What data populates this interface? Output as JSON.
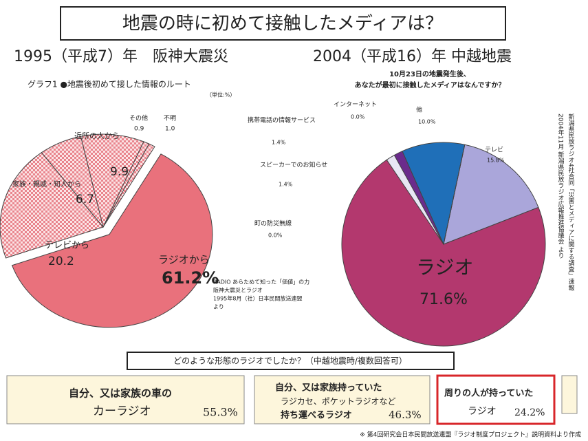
{
  "title": "地震の時に初めて接触したメディアは？",
  "chart_data": [
    {
      "type": "pie",
      "title": "1995（平成7）年　阪神大震災",
      "subtitle": "グラフ1 ●地震後初めて接した情報のルート",
      "unit": "（単位:%）",
      "categories": [
        "ラジオから",
        "テレビから",
        "家族・親戚・知人から",
        "近所の人から",
        "その他",
        "不明"
      ],
      "values": [
        61.2,
        20.2,
        6.7,
        9.9,
        0.9,
        1.0
      ],
      "value_labels": [
        "61.2%",
        "20.2",
        "6.7",
        "9.9",
        "0.9",
        "1.0"
      ],
      "colors": [
        "#e9717c",
        "#f3bcc0",
        "#f3bcc0",
        "#f3bcc0",
        "#f3bcc0",
        "#f3bcc0"
      ],
      "source": [
        "RADIO あらためて知った「価値」の力",
        "阪神大震災とラジオ",
        "1995年8月（社）日本民間放送連盟",
        "より"
      ]
    },
    {
      "type": "pie",
      "title": "2004（平成16）年 中越地震",
      "subtitle": [
        "10月23日の地震発生後、",
        "あなたが最初に接触したメディアはなんですか？"
      ],
      "categories": [
        "テレビ",
        "ラジオ",
        "スピーカーでのお知らせ",
        "携帯電話の情報サービス",
        "他",
        "インターネット",
        "町の防災無線"
      ],
      "values": [
        15.8,
        71.6,
        1.4,
        1.4,
        10.0,
        0.0,
        0.0
      ],
      "value_labels": [
        "15.8%",
        "71.6%",
        "1.4%",
        "1.4%",
        "10.0%",
        "0.0%",
        "0.0%"
      ],
      "colors": [
        "#aaa6da",
        "#b3386e",
        "#e8e6f4",
        "#6b2b8c",
        "#1f6fb8",
        "#1f6fb8",
        "#1f6fb8"
      ],
      "source": [
        "新潟県民放ラジオ4社合同「災害とメディアに関する調査」速報",
        "2004年11月 新潟県民放ラジオ広報推進協議会 より"
      ]
    }
  ],
  "question": "どのような形態のラジオでしたか？（中越地震時/複数回答可）",
  "answers": [
    {
      "lines": [
        "自分、又は家族の車の",
        "カーラジオ"
      ],
      "value": "55.3%"
    },
    {
      "lines": [
        "自分、又は家族持っていた",
        "ラジカセ、ポケットラジオなど",
        "持ち運べるラジオ"
      ],
      "value": "46.3%"
    },
    {
      "lines": [
        "周りの人が持っていた",
        "ラジオ"
      ],
      "value": "24.2%"
    }
  ],
  "footer": "※ 第4回研究会日本民間放送連盟『ラジオ制度プロジェクト』説明資料より作成"
}
